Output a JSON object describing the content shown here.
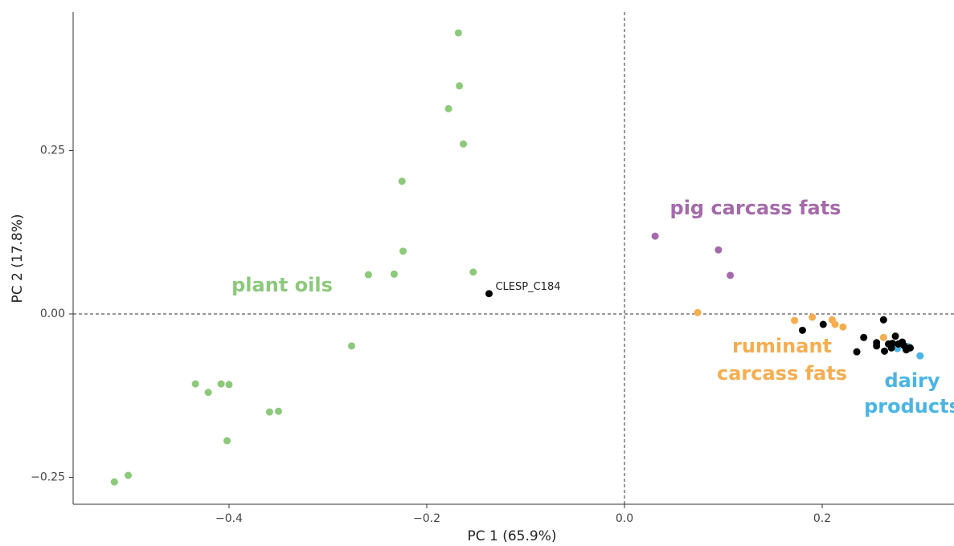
{
  "chart_data": {
    "type": "scatter",
    "x_label": "PC 1 (65.9%)",
    "y_label": "PC 2 (17.8%)",
    "xlim": [
      -0.5577,
      0.3333
    ],
    "ylim": [
      -0.2912,
      0.4619
    ],
    "xticks": [
      {
        "value": -0.4,
        "label": "−0.4"
      },
      {
        "value": -0.2,
        "label": "−0.2"
      },
      {
        "value": 0.0,
        "label": "0.0"
      },
      0.2
    ],
    "yticks": [
      {
        "value": -0.25,
        "label": "−0.25"
      },
      {
        "value": 0.0,
        "label": "0.00"
      },
      0.25
    ],
    "zero_lines": true,
    "series": [
      {
        "color": "#8cc97a",
        "x": [
          -0.168,
          -0.167,
          -0.178,
          -0.163,
          -0.225,
          -0.224,
          -0.153,
          -0.259,
          -0.233,
          -0.276,
          -0.434,
          -0.421,
          -0.408,
          -0.4,
          -0.359,
          -0.35,
          -0.402,
          -0.516,
          -0.502
        ],
        "values": [
          0.43,
          0.349,
          0.314,
          0.26,
          0.203,
          0.096,
          0.064,
          0.06,
          0.061,
          -0.049,
          -0.107,
          -0.12,
          -0.107,
          -0.108,
          -0.15,
          -0.149,
          -0.194,
          -0.257,
          -0.247
        ]
      },
      {
        "color": "#a56aaa",
        "x": [
          0.031,
          0.095,
          0.107
        ],
        "values": [
          0.119,
          0.098,
          0.059
        ]
      },
      {
        "color": "#f5ad4f",
        "x": [
          0.074,
          0.172,
          0.19,
          0.21,
          0.213,
          0.221,
          0.262
        ],
        "values": [
          0.002,
          -0.01,
          -0.005,
          -0.009,
          -0.016,
          -0.02,
          -0.036
        ]
      },
      {
        "color": "#49b5e6",
        "x": [
          0.276,
          0.299,
          0.287
        ],
        "values": [
          -0.053,
          -0.064,
          -0.05
        ]
      },
      {
        "color": "#000000",
        "x": [
          -0.137,
          0.262,
          0.18,
          0.201,
          0.235,
          0.242,
          0.255,
          0.255,
          0.263,
          0.267,
          0.27,
          0.274,
          0.277,
          0.281,
          0.283,
          0.285,
          0.289,
          0.271
        ],
        "values": [
          0.031,
          -0.009,
          -0.025,
          -0.016,
          -0.058,
          -0.036,
          -0.044,
          -0.049,
          -0.057,
          -0.046,
          -0.052,
          -0.034,
          -0.046,
          -0.043,
          -0.049,
          -0.055,
          -0.052,
          -0.045
        ]
      }
    ],
    "annotations": [
      {
        "text": [
          "plant oils"
        ],
        "color": "#8cc97a"
      },
      {
        "text": [
          "pig carcass fats"
        ],
        "color": "#a56aaa"
      },
      {
        "text": [
          "ruminant",
          "carcass fats"
        ],
        "color": "#f5ad4f"
      },
      {
        "text": [
          "dairy",
          "products"
        ],
        "color": "#49b5e6"
      },
      {
        "text": [
          "CLESP_C184"
        ],
        "color": "#222222"
      }
    ]
  }
}
